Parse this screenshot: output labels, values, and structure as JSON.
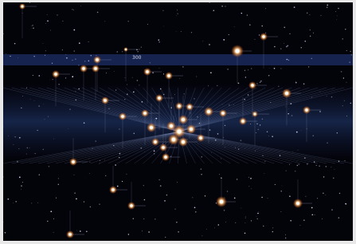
{
  "sky_map": {
    "azimuth_label": "300"
  }
}
